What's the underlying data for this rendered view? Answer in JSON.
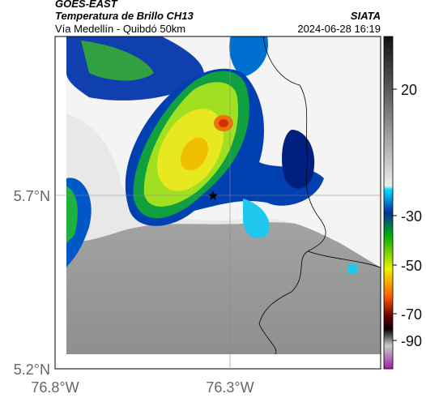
{
  "header": {
    "title": "GOES-EAST",
    "product": "Temperatura de Brillo CH13",
    "source": "SIATA",
    "region": "Vía Medellín - Quibdó 50km",
    "timestamp": "2024-06-28 16:19"
  },
  "axes": {
    "lat_labels": [
      "5.7°N",
      "5.2°N"
    ],
    "lon_labels": [
      "76.8°W",
      "76.3°W"
    ]
  },
  "colorbar": {
    "ticks": [
      20,
      -30,
      -50,
      -70,
      -90
    ]
  }
}
